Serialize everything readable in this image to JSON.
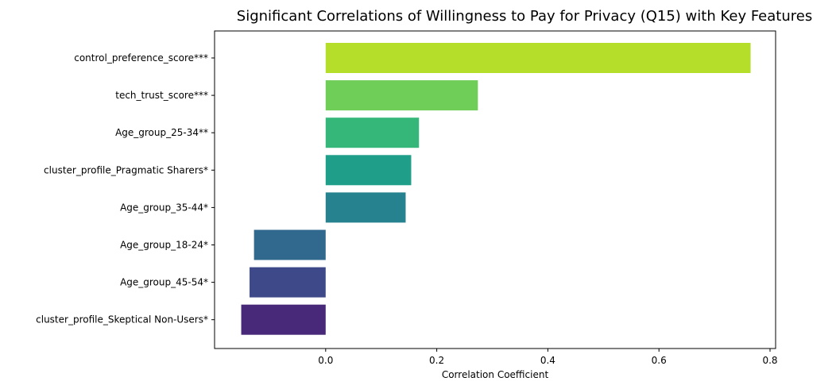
{
  "chart_data": {
    "type": "bar",
    "orientation": "horizontal",
    "title": "Significant Correlations of Willingness to Pay for Privacy (Q15) with Key Features",
    "xlabel": "Correlation Coefficient",
    "ylabel": "",
    "xlim": [
      -0.2,
      0.81
    ],
    "xticks": [
      0.0,
      0.2,
      0.4,
      0.6,
      0.8
    ],
    "xtick_labels": [
      "0.0",
      "0.2",
      "0.4",
      "0.6",
      "0.8"
    ],
    "grid": false,
    "categories": [
      "control_preference_score***",
      "tech_trust_score***",
      "Age_group_25-34**",
      "cluster_profile_Pragmatic Sharers*",
      "Age_group_35-44*",
      "Age_group_18-24*",
      "Age_group_45-54*",
      "cluster_profile_Skeptical Non-Users*"
    ],
    "values": [
      0.765,
      0.274,
      0.168,
      0.154,
      0.144,
      -0.129,
      -0.137,
      -0.152
    ],
    "colors": [
      "#b5de2b",
      "#6ece58",
      "#35b779",
      "#1f9e89",
      "#26828e",
      "#31688e",
      "#3e4989",
      "#482878"
    ]
  }
}
